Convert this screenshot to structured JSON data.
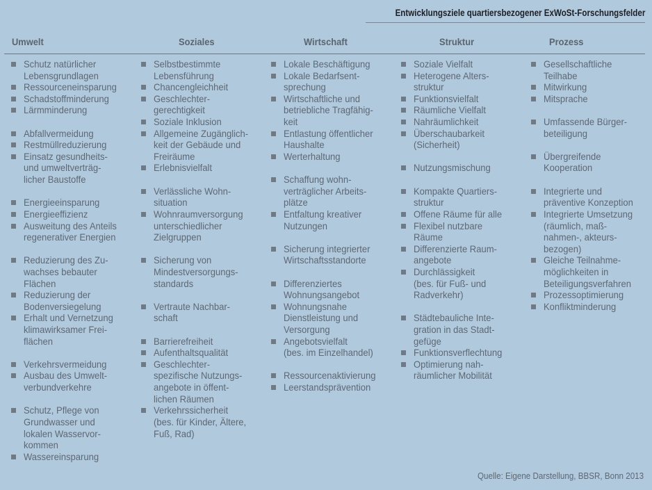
{
  "title": "Entwicklungsziele quartiersbezogener ExWoSt-Forschungsfelder",
  "source": "Quelle: Eigene Darstellung, BBSR, Bonn 2013",
  "colors": {
    "background": "#b1c9dd",
    "text": "#5d6873",
    "title": "#1c1f24"
  },
  "bullet_icon": "square-bullet-icon",
  "columns": [
    {
      "header": "Umwelt",
      "groups": [
        [
          [
            "Schutz natürlicher",
            "Lebensgrundlagen"
          ],
          [
            "Ressourceneinsparung"
          ],
          [
            "Schadstoffminderung"
          ],
          [
            "Lärmminderung"
          ]
        ],
        [
          [
            "Abfallvermeidung"
          ],
          [
            "Restmüllreduzierung"
          ],
          [
            "Einsatz gesundheits-",
            "und umweltverträg-",
            "licher Baustoffe"
          ]
        ],
        [
          [
            "Energieeinsparung"
          ],
          [
            "Energieeffizienz"
          ],
          [
            "Ausweitung des Anteils",
            "regenerativer Energien"
          ]
        ],
        [
          [
            "Reduzierung des Zu-",
            "wachses bebauter",
            "Flächen"
          ],
          [
            "Reduzierung der",
            "Bodenversiegelung"
          ],
          [
            "Erhalt und Vernetzung",
            "klimawirksamer Frei-",
            "flächen"
          ]
        ],
        [
          [
            "Verkehrsvermeidung"
          ],
          [
            "Ausbau des Umwelt-",
            "verbundverkehre"
          ]
        ],
        [
          [
            "Schutz, Pflege von",
            "Grundwasser und",
            "lokalen Wasservor-",
            "kommen"
          ],
          [
            "Wassereinsparung"
          ]
        ]
      ]
    },
    {
      "header": "Soziales",
      "groups": [
        [
          [
            "Selbstbestimmte",
            "Lebensführung"
          ],
          [
            "Chancengleichheit"
          ],
          [
            "Geschlechter-",
            "gerechtigkeit"
          ],
          [
            "Soziale Inklusion"
          ],
          [
            "Allgemeine Zugänglich-",
            "keit der Gebäude und",
            "Freiräume"
          ],
          [
            "Erlebnisvielfalt"
          ]
        ],
        [
          [
            "Verlässliche Wohn-",
            "situation"
          ],
          [
            "Wohnraumversorgung",
            "unterschiedlicher",
            "Zielgruppen"
          ]
        ],
        [
          [
            "Sicherung von",
            "Mindestversorgungs-",
            "standards"
          ]
        ],
        [
          [
            "Vertraute Nachbar-",
            "schaft"
          ]
        ],
        [
          [
            "Barrierefreiheit"
          ],
          [
            "Aufenthaltsqualität"
          ],
          [
            "Geschlechter-",
            "spezifische Nutzungs-",
            "angebote in öffent-",
            "lichen Räumen"
          ],
          [
            "Verkehrssicherheit",
            "(bes. für Kinder, Ältere,",
            "Fuß, Rad)"
          ]
        ]
      ]
    },
    {
      "header": "Wirtschaft",
      "groups": [
        [
          [
            "Lokale Beschäftigung"
          ],
          [
            "Lokale Bedarfsent-",
            "sprechung"
          ],
          [
            "Wirtschaftliche und",
            "betriebliche Tragfähig-",
            "keit"
          ],
          [
            "Entlastung öffentlicher",
            "Haushalte"
          ],
          [
            "Werterhaltung"
          ]
        ],
        [
          [
            "Schaffung wohn-",
            "verträglicher Arbeits-",
            "plätze"
          ],
          [
            "Entfaltung kreativer",
            "Nutzungen"
          ]
        ],
        [
          [
            "Sicherung integrierter",
            "Wirtschaftsstandorte"
          ]
        ],
        [
          [
            "Differenziertes",
            "Wohnungsangebot"
          ],
          [
            "Wohnungsnahe",
            "Dienstleistung und",
            "Versorgung"
          ],
          [
            "Angebotsvielfalt",
            "(bes. im Einzelhandel)"
          ]
        ],
        [
          [
            "Ressourcenaktivierung"
          ],
          [
            "Leerstandsprävention"
          ]
        ]
      ]
    },
    {
      "header": "Struktur",
      "groups": [
        [
          [
            "Soziale Vielfalt"
          ],
          [
            "Heterogene Alters-",
            "struktur"
          ],
          [
            "Funktionsvielfalt"
          ],
          [
            "Räumliche Vielfalt"
          ],
          [
            "Nahräumlichkeit"
          ],
          [
            "Überschaubarkeit",
            "(Sicherheit)"
          ]
        ],
        [
          [
            "Nutzungsmischung"
          ]
        ],
        [
          [
            "Kompakte Quartiers-",
            "struktur"
          ],
          [
            "Offene Räume für alle"
          ],
          [
            "Flexibel nutzbare",
            "Räume"
          ],
          [
            "Differenzierte Raum-",
            "angebote"
          ],
          [
            "Durchlässigkeit",
            "(bes. für Fuß- und",
            "Radverkehr)"
          ]
        ],
        [
          [
            "Städtebauliche Inte-",
            "gration in das Stadt-",
            "gefüge"
          ],
          [
            "Funktionsverflechtung"
          ],
          [
            "Optimierung nah-",
            "räumlicher Mobilität"
          ]
        ]
      ]
    },
    {
      "header": "Prozess",
      "groups": [
        [
          [
            "Gesellschaftliche",
            "Teilhabe"
          ],
          [
            "Mitwirkung"
          ],
          [
            "Mitsprache"
          ]
        ],
        [
          [
            "Umfassende Bürger-",
            "beteiligung"
          ]
        ],
        [
          [
            "Übergreifende",
            "Kooperation"
          ]
        ],
        [
          [
            "Integrierte und",
            "präventive Konzeption"
          ],
          [
            "Integrierte Umsetzung",
            "(räumlich, maß-",
            "nahmen-, akteurs-",
            "bezogen)"
          ],
          [
            "Gleiche Teilnahme-",
            "möglichkeiten in",
            "Beteiligungsverfahren"
          ],
          [
            "Prozessoptimierung"
          ],
          [
            "Konfliktminderung"
          ]
        ]
      ]
    }
  ]
}
